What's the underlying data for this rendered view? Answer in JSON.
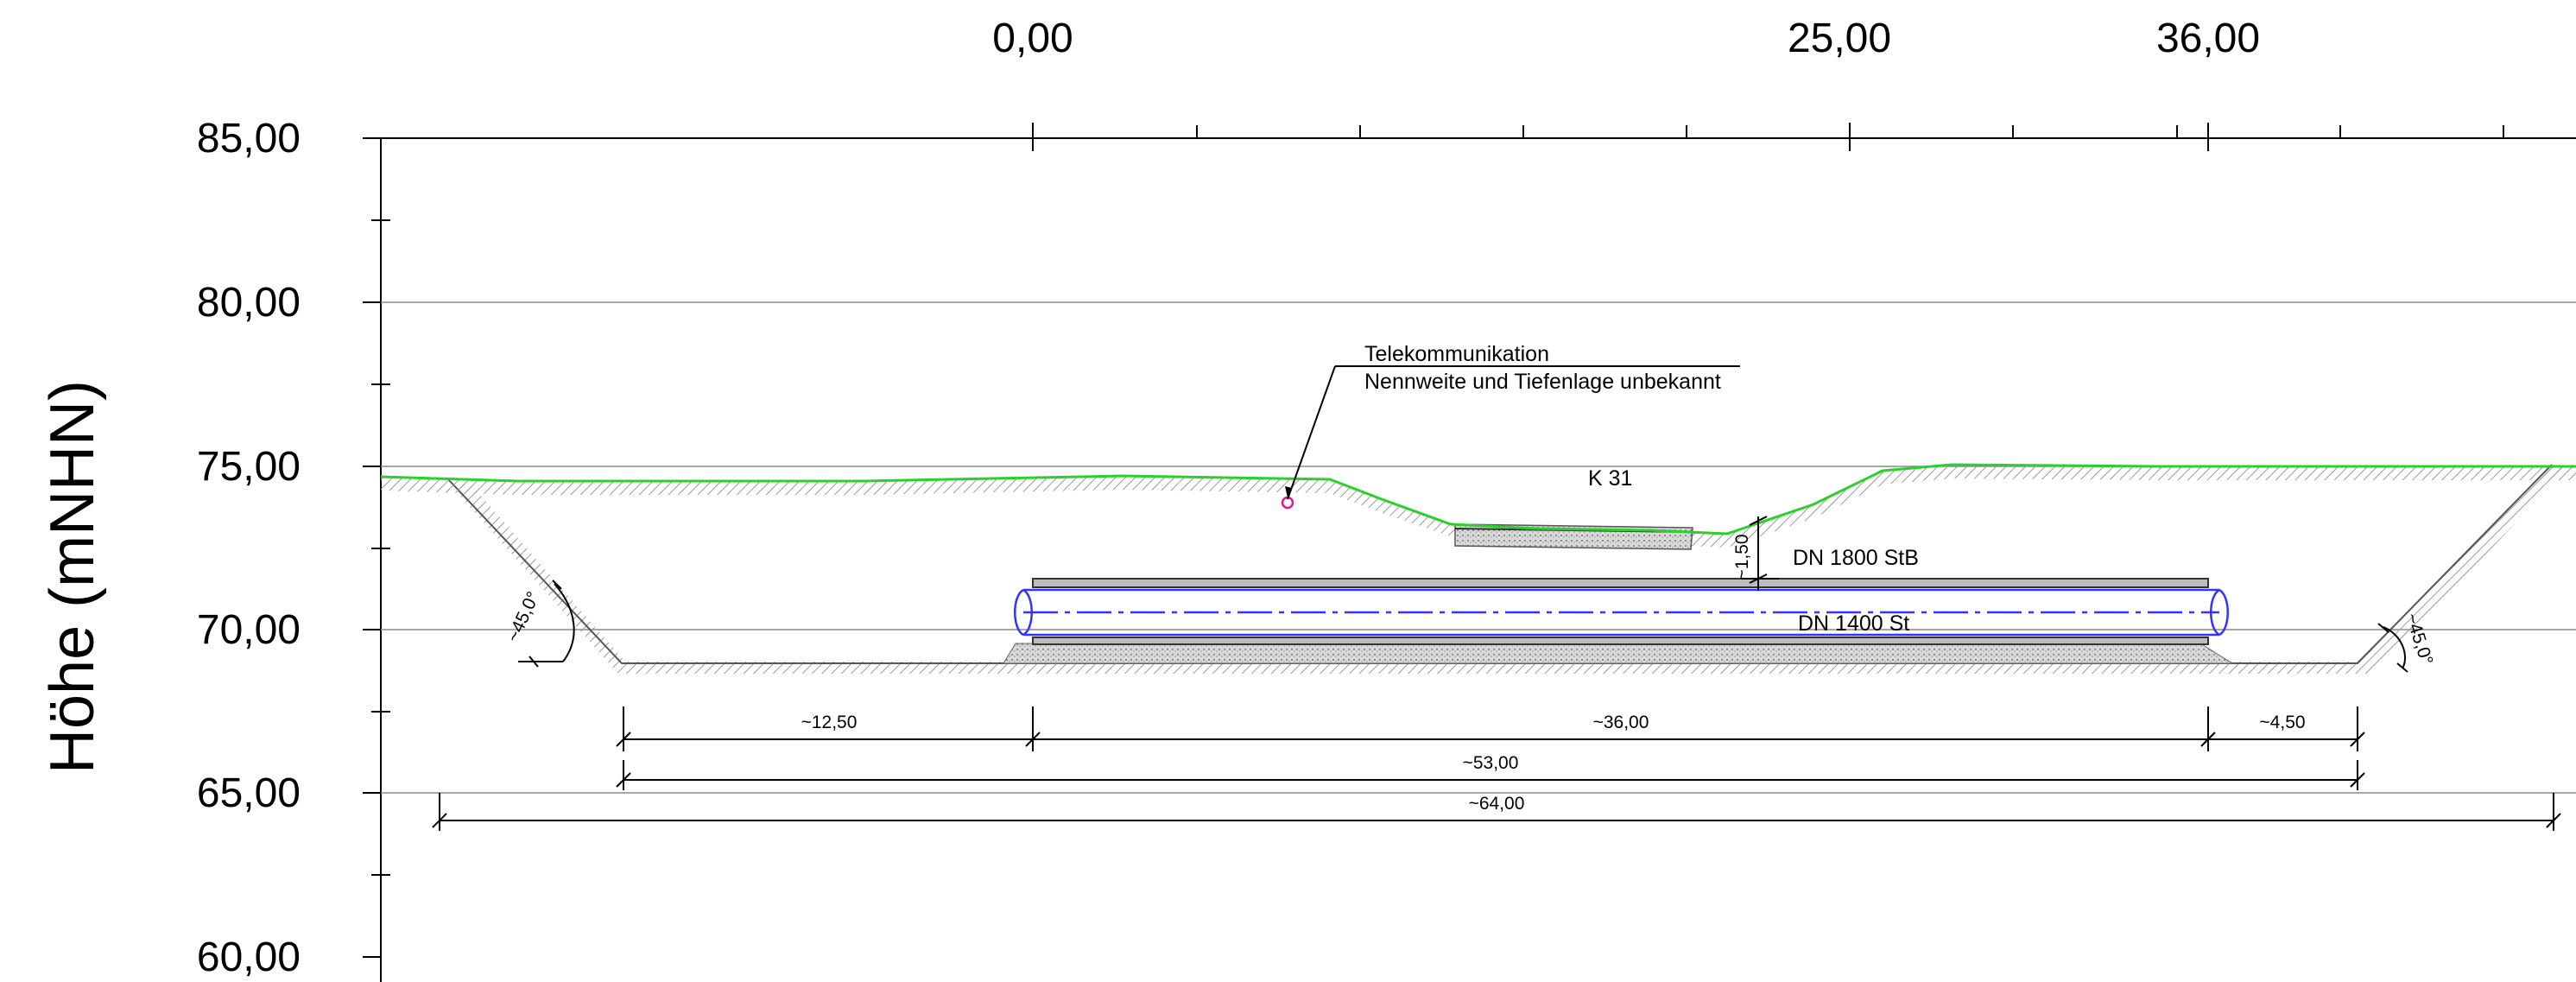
{
  "colors": {
    "terrain": "#2bd12b",
    "pipe": "#3333ff",
    "marker": "#e0179a",
    "hatch": "#9a9a9a",
    "grid": "#7a7a7a"
  },
  "axis": {
    "y_title": "Höhe (mNHN)",
    "y_ticks": [
      "85,00",
      "80,00",
      "75,00",
      "70,00",
      "65,00",
      "60,00"
    ],
    "x_ticks": [
      "0,00",
      "25,00",
      "36,00"
    ]
  },
  "annotations": {
    "telecom_line1": "Telekommunikation",
    "telecom_line2": "Nennweite und Tiefenlage unbekannt",
    "road": "K 31",
    "pipe_upper": "DN 1800 StB",
    "pipe_lower": "DN 1400 St",
    "depth": "~1,50",
    "slope_left": "~45,0°",
    "slope_right": "~45,0°"
  },
  "dimensions": {
    "d1": "~12,50",
    "d2": "~36,00",
    "d3": "~4,50",
    "d4": "~53,00",
    "d5": "~64,00"
  }
}
